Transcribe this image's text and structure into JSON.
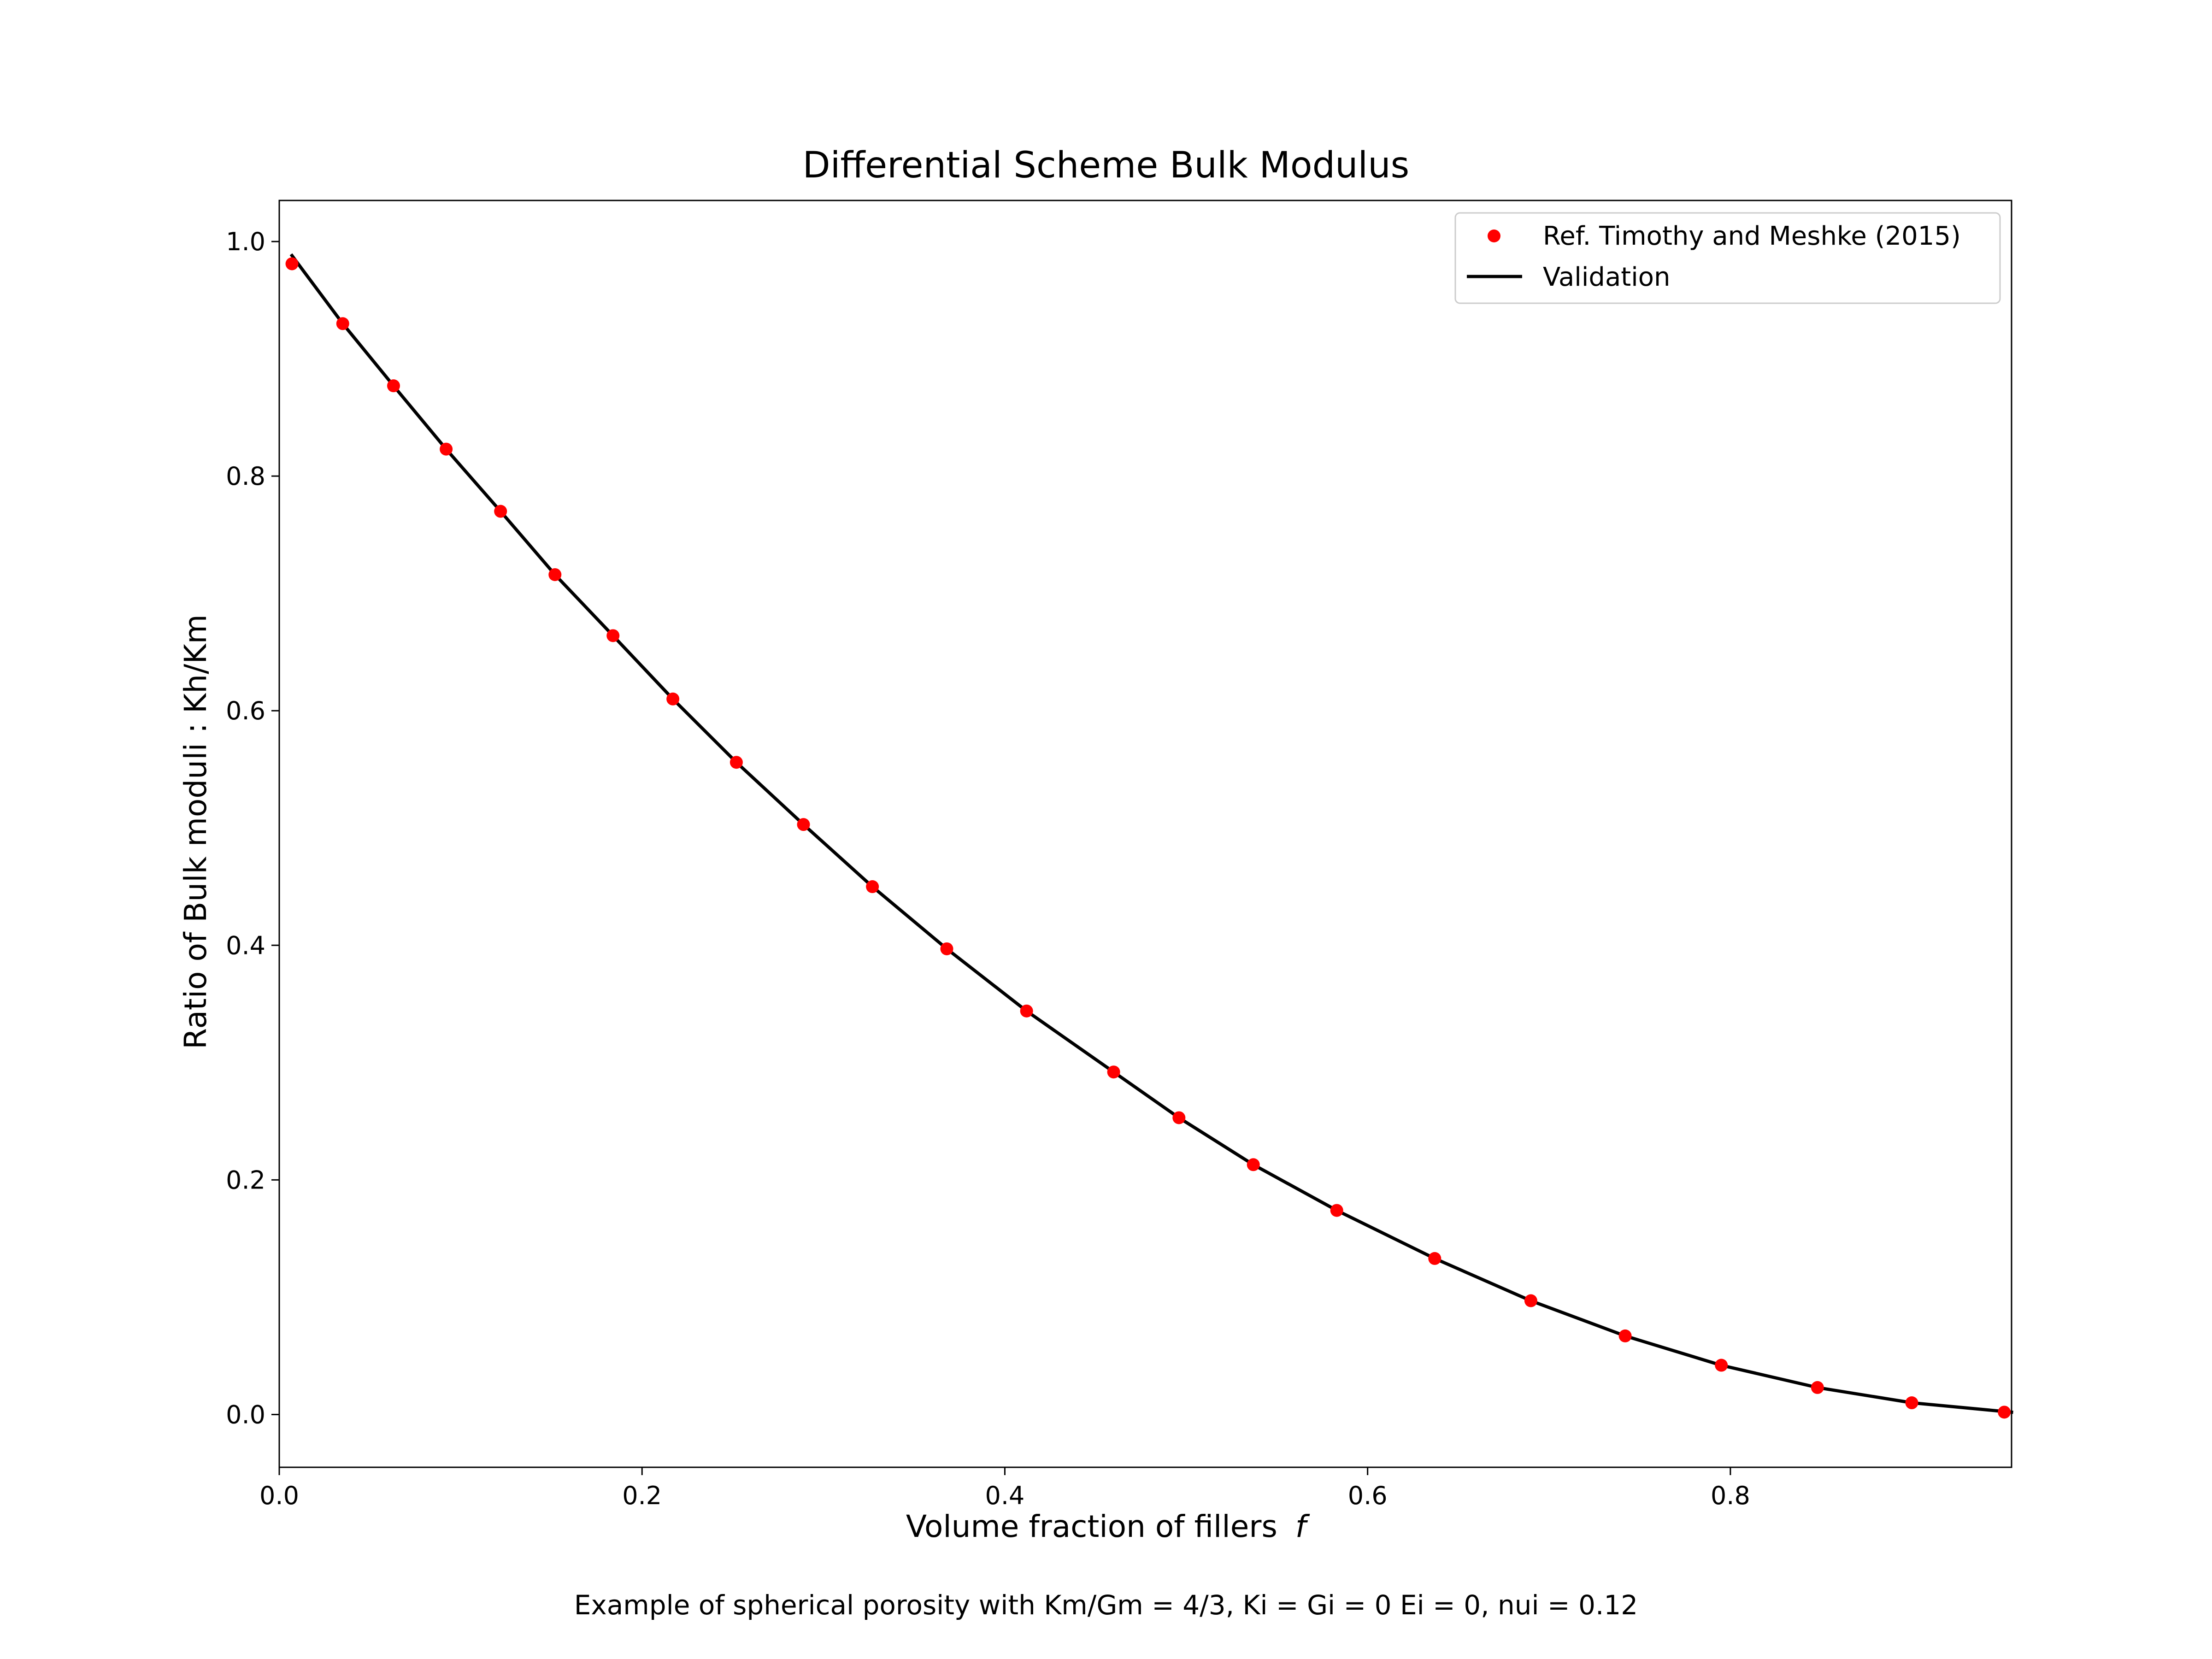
{
  "chart_data": {
    "type": "scatter",
    "title": "Differential Scheme Bulk Modulus",
    "xlabel": "Volume fraction of fillers",
    "xlabel_symbol": "f",
    "ylabel": "Ratio of Bulk moduli : Kh/Km",
    "caption": "Example of spherical porosity with Km/Gm = 4/3, Ki = Gi = 0 Ei = 0, nui = 0.12",
    "xlim": [
      0.0,
      0.955
    ],
    "ylim": [
      -0.045,
      1.035
    ],
    "xticks": [
      0.0,
      0.2,
      0.4,
      0.6,
      0.8
    ],
    "xtick_labels": [
      "0.0",
      "0.2",
      "0.4",
      "0.6",
      "0.8"
    ],
    "yticks": [
      0.0,
      0.2,
      0.4,
      0.6,
      0.8,
      1.0
    ],
    "ytick_labels": [
      "0.0",
      "0.2",
      "0.4",
      "0.6",
      "0.8",
      "1.0"
    ],
    "grid": false,
    "legend_position": "top-right",
    "series": [
      {
        "name": "Ref. Timothy and Meshke (2015)",
        "kind": "scatter",
        "color": "#ff0000",
        "x": [
          0.007,
          0.035,
          0.063,
          0.092,
          0.122,
          0.152,
          0.184,
          0.217,
          0.252,
          0.289,
          0.327,
          0.368,
          0.412,
          0.46,
          0.496,
          0.537,
          0.583,
          0.637,
          0.69,
          0.742,
          0.795,
          0.848,
          0.9,
          0.951
        ],
        "y": [
          0.981,
          0.93,
          0.877,
          0.823,
          0.77,
          0.716,
          0.664,
          0.61,
          0.556,
          0.503,
          0.45,
          0.397,
          0.344,
          0.292,
          0.253,
          0.213,
          0.174,
          0.133,
          0.097,
          0.067,
          0.042,
          0.023,
          0.01,
          0.002
        ]
      },
      {
        "name": "Validation",
        "kind": "line",
        "color": "#000000",
        "x": [
          0.007,
          0.035,
          0.063,
          0.092,
          0.122,
          0.152,
          0.184,
          0.217,
          0.252,
          0.289,
          0.327,
          0.368,
          0.412,
          0.46,
          0.496,
          0.537,
          0.583,
          0.637,
          0.69,
          0.742,
          0.795,
          0.848,
          0.9,
          0.955
        ],
        "y": [
          0.988,
          0.93,
          0.877,
          0.823,
          0.77,
          0.716,
          0.664,
          0.61,
          0.556,
          0.503,
          0.45,
          0.397,
          0.344,
          0.292,
          0.253,
          0.213,
          0.174,
          0.133,
          0.097,
          0.067,
          0.042,
          0.023,
          0.01,
          0.002
        ]
      }
    ]
  }
}
